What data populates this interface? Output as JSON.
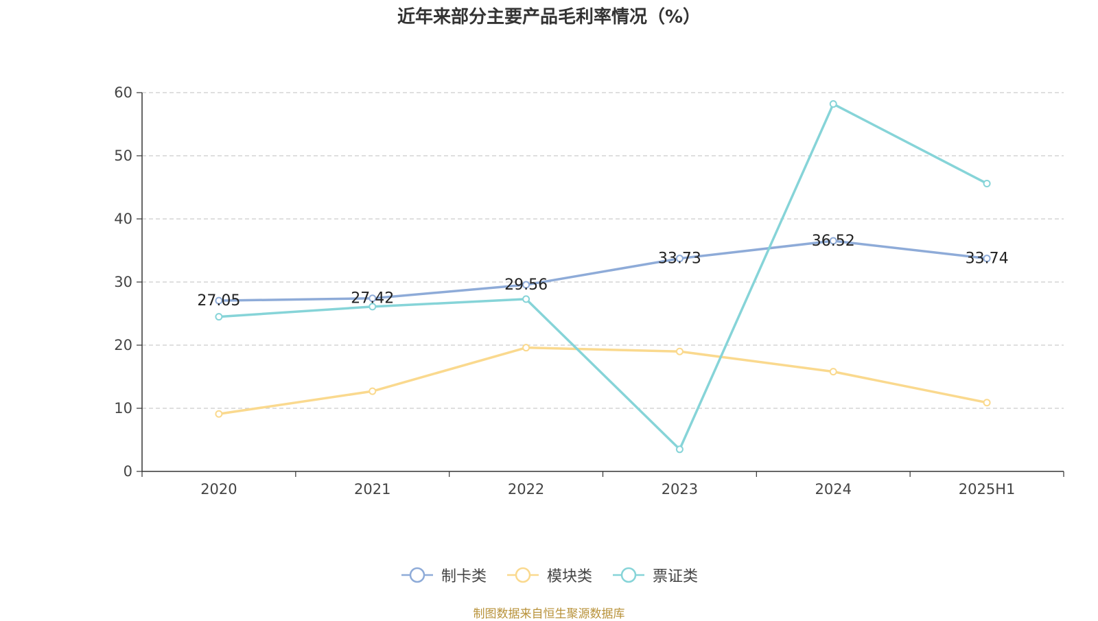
{
  "chart_data": {
    "type": "line",
    "title": "近年来部分主要产品毛利率情况（%）",
    "categories": [
      "2020",
      "2021",
      "2022",
      "2023",
      "2024",
      "2025H1"
    ],
    "ylim": [
      0,
      60
    ],
    "yticks": [
      0,
      10,
      20,
      30,
      40,
      50,
      60
    ],
    "grid": true,
    "legend_position": "bottom",
    "series": [
      {
        "name": "制卡类",
        "color": "#8eabd8",
        "values": [
          27.05,
          27.42,
          29.56,
          33.73,
          36.52,
          33.74
        ],
        "labels": [
          "27.05",
          "27.42",
          "29.56",
          "33.73",
          "36.52",
          "33.74"
        ]
      },
      {
        "name": "模块类",
        "color": "#fad98e",
        "values": [
          9.1,
          12.7,
          19.6,
          19.0,
          15.8,
          10.9
        ]
      },
      {
        "name": "票证类",
        "color": "#86d4d8",
        "values": [
          24.5,
          26.1,
          27.3,
          3.5,
          58.2,
          45.6
        ]
      }
    ]
  },
  "footer": {
    "source": "制图数据来自恒生聚源数据库"
  }
}
